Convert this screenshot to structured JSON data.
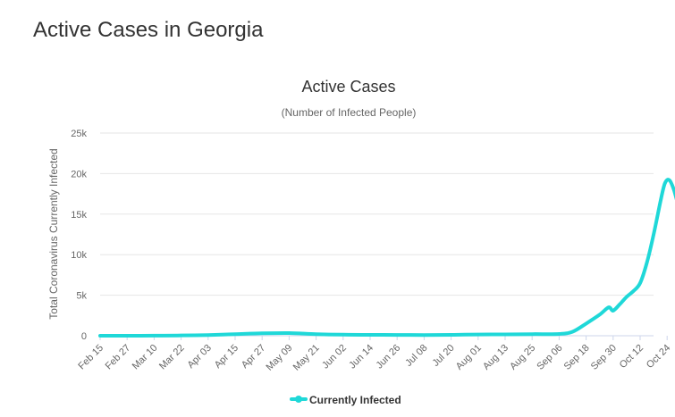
{
  "page": {
    "heading": "Active Cases in Georgia"
  },
  "chart_data": {
    "type": "line",
    "title": "Active Cases",
    "subtitle": "(Number of Infected People)",
    "ylabel": "Total Coronavirus Currently Infected",
    "xlabel": "",
    "ylim": [
      0,
      25000
    ],
    "yticks": [
      0,
      5000,
      10000,
      15000,
      20000,
      25000
    ],
    "ytick_labels": [
      "0",
      "5k",
      "10k",
      "15k",
      "20k",
      "25k"
    ],
    "xtick_labels": [
      "Feb 15",
      "Feb 27",
      "Mar 10",
      "Mar 22",
      "Apr 03",
      "Apr 15",
      "Apr 27",
      "May 09",
      "May 21",
      "Jun 02",
      "Jun 14",
      "Jun 26",
      "Jul 08",
      "Jul 20",
      "Aug 01",
      "Aug 13",
      "Aug 25",
      "Sep 06",
      "Sep 18",
      "Sep 30",
      "Oct 12",
      "Oct 24"
    ],
    "grid": true,
    "legend_position": "bottom-center",
    "color": "#1fd8d8",
    "series": [
      {
        "name": "Currently Infected",
        "x": [
          "Feb 15",
          "Feb 27",
          "Mar 10",
          "Mar 22",
          "Apr 03",
          "Apr 15",
          "Apr 27",
          "May 09",
          "May 21",
          "Jun 02",
          "Jun 14",
          "Jun 26",
          "Jul 08",
          "Jul 20",
          "Aug 01",
          "Aug 13",
          "Aug 25",
          "Sep 06",
          "Sep 12",
          "Sep 18",
          "Sep 24",
          "Sep 28",
          "Sep 30",
          "Oct 03",
          "Oct 06",
          "Oct 09",
          "Oct 12",
          "Oct 15",
          "Oct 18",
          "Oct 21",
          "Oct 23",
          "Oct 25",
          "Oct 27",
          "Oct 29"
        ],
        "values": [
          0,
          0,
          10,
          40,
          90,
          200,
          300,
          330,
          200,
          130,
          110,
          100,
          90,
          110,
          150,
          170,
          200,
          220,
          500,
          1500,
          2600,
          3500,
          3100,
          3900,
          4800,
          5500,
          6500,
          9000,
          12500,
          16500,
          18800,
          19200,
          18000,
          16000
        ]
      }
    ]
  }
}
